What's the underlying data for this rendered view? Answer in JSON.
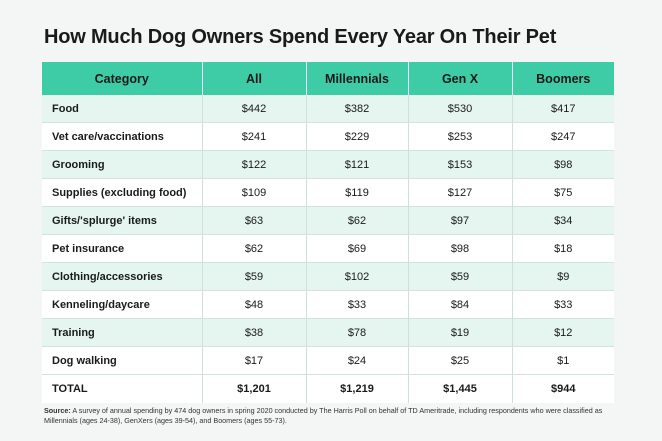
{
  "title": "How Much Dog Owners Spend Every Year On Their Pet",
  "headers": [
    "Category",
    "All",
    "Millennials",
    "Gen X",
    "Boomers"
  ],
  "rows": [
    [
      "Food",
      "$442",
      "$382",
      "$530",
      "$417"
    ],
    [
      "Vet care/vaccinations",
      "$241",
      "$229",
      "$253",
      "$247"
    ],
    [
      "Grooming",
      "$122",
      "$121",
      "$153",
      "$98"
    ],
    [
      "Supplies (excluding food)",
      "$109",
      "$119",
      "$127",
      "$75"
    ],
    [
      "Gifts/'splurge' items",
      "$63",
      "$62",
      "$97",
      "$34"
    ],
    [
      "Pet insurance",
      "$62",
      "$69",
      "$98",
      "$18"
    ],
    [
      "Clothing/accessories",
      "$59",
      "$102",
      "$59",
      "$9"
    ],
    [
      "Kenneling/daycare",
      "$48",
      "$33",
      "$84",
      "$33"
    ],
    [
      "Training",
      "$38",
      "$78",
      "$19",
      "$12"
    ],
    [
      "Dog walking",
      "$17",
      "$24",
      "$25",
      "$1"
    ],
    [
      "TOTAL",
      "$1,201",
      "$1,219",
      "$1,445",
      "$944"
    ]
  ],
  "source": {
    "label": "Source:",
    "text": "A survey of annual spending by 474 dog owners in spring 2020 conducted by The Harris Poll on behalf of TD Ameritrade, including respondents who were classified as Millennials (ages 24-38), GenXers (ages 39-54), and Boomers (ages 55-73)."
  },
  "colors": {
    "header": "#3dcca6",
    "row_tint": "#e4f6ef",
    "background": "#f3f6f5"
  },
  "chart_data": {
    "type": "table",
    "title": "How Much Dog Owners Spend Every Year On Their Pet",
    "columns": [
      "Category",
      "All",
      "Millennials",
      "Gen X",
      "Boomers"
    ],
    "categories": [
      "Food",
      "Vet care/vaccinations",
      "Grooming",
      "Supplies (excluding food)",
      "Gifts/'splurge' items",
      "Pet insurance",
      "Clothing/accessories",
      "Kenneling/daycare",
      "Training",
      "Dog walking",
      "TOTAL"
    ],
    "series": [
      {
        "name": "All",
        "values": [
          442,
          241,
          122,
          109,
          63,
          62,
          59,
          48,
          38,
          17,
          1201
        ]
      },
      {
        "name": "Millennials",
        "values": [
          382,
          229,
          121,
          119,
          62,
          69,
          102,
          33,
          78,
          24,
          1219
        ]
      },
      {
        "name": "Gen X",
        "values": [
          530,
          253,
          153,
          127,
          97,
          98,
          59,
          84,
          19,
          25,
          1445
        ]
      },
      {
        "name": "Boomers",
        "values": [
          417,
          247,
          98,
          75,
          34,
          18,
          9,
          33,
          12,
          1,
          944
        ]
      }
    ]
  }
}
